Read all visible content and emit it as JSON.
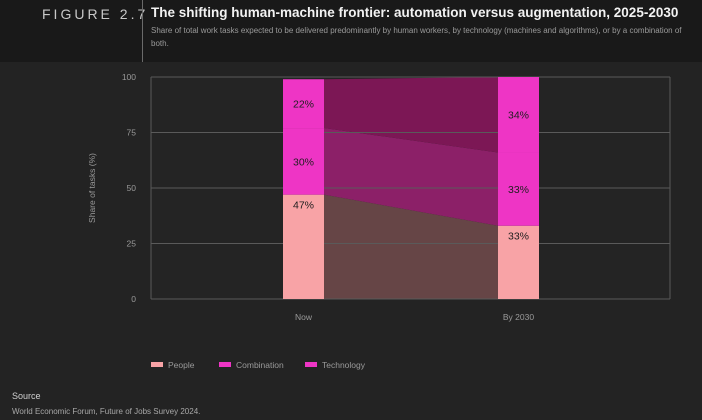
{
  "figure_label": "FIGURE 2.7",
  "title": "The shifting human-machine frontier: automation versus augmentation, 2025-2030",
  "subtitle": "Share of total work tasks expected to be delivered predominantly by human workers, by technology (machines and algorithms), or by a combination of both.",
  "source_label": "Source",
  "source_text": "World Economic Forum, Future of Jobs Survey 2024.",
  "colors": {
    "people": "#f8a3a6",
    "combination": "#ee35c5",
    "technology": "#ee35c5",
    "area_people": "#664546",
    "area_combination": "#8c2068",
    "area_technology": "#7c1755",
    "grid": "#5a5a5a",
    "axis_text": "#9a9a9a"
  },
  "chart_data": {
    "type": "stacked-bar",
    "title": "The shifting human-machine frontier: automation versus augmentation, 2025-2030",
    "ylabel": "Share of tasks (%)",
    "xlabel": "",
    "ylim": [
      0,
      100
    ],
    "yticks": [
      "0",
      "25",
      "50",
      "75",
      "100"
    ],
    "categories": [
      "Now",
      "By 2030"
    ],
    "series": [
      {
        "name": "People",
        "values": [
          47,
          33
        ],
        "labels": [
          "47%",
          "33%"
        ]
      },
      {
        "name": "Combination",
        "values": [
          30,
          33
        ],
        "labels": [
          "30%",
          "33%"
        ]
      },
      {
        "name": "Technology",
        "values": [
          22,
          34
        ],
        "labels": [
          "22%",
          "34%"
        ]
      }
    ],
    "legend": [
      "People",
      "Combination",
      "Technology"
    ],
    "legend_position": "bottom-left"
  }
}
